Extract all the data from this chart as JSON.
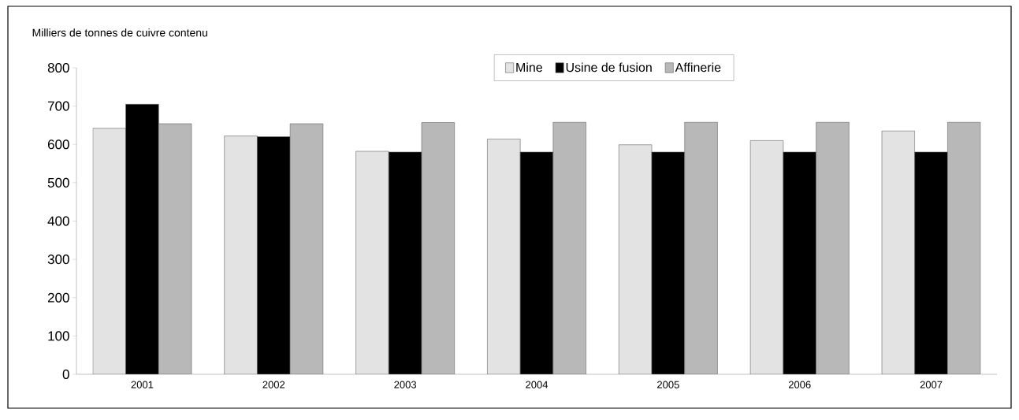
{
  "chart_data": {
    "type": "bar",
    "title": "Milliers de tonnes de cuivre contenu",
    "categories": [
      "2001",
      "2002",
      "2003",
      "2004",
      "2005",
      "2006",
      "2007"
    ],
    "series": [
      {
        "name": "Mine",
        "color": "#e3e3e3",
        "values": [
          642,
          622,
          582,
          614,
          599,
          610,
          635
        ]
      },
      {
        "name": "Usine de fusion",
        "color": "#000000",
        "values": [
          705,
          620,
          580,
          580,
          580,
          580,
          580
        ]
      },
      {
        "name": "Affinerie",
        "color": "#b8b8b8",
        "values": [
          654,
          654,
          657,
          658,
          658,
          658,
          658
        ]
      }
    ],
    "ylim": [
      0,
      800
    ],
    "yticks": [
      0,
      100,
      200,
      300,
      400,
      500,
      600,
      700,
      800
    ],
    "legend": "top",
    "grid": false
  }
}
